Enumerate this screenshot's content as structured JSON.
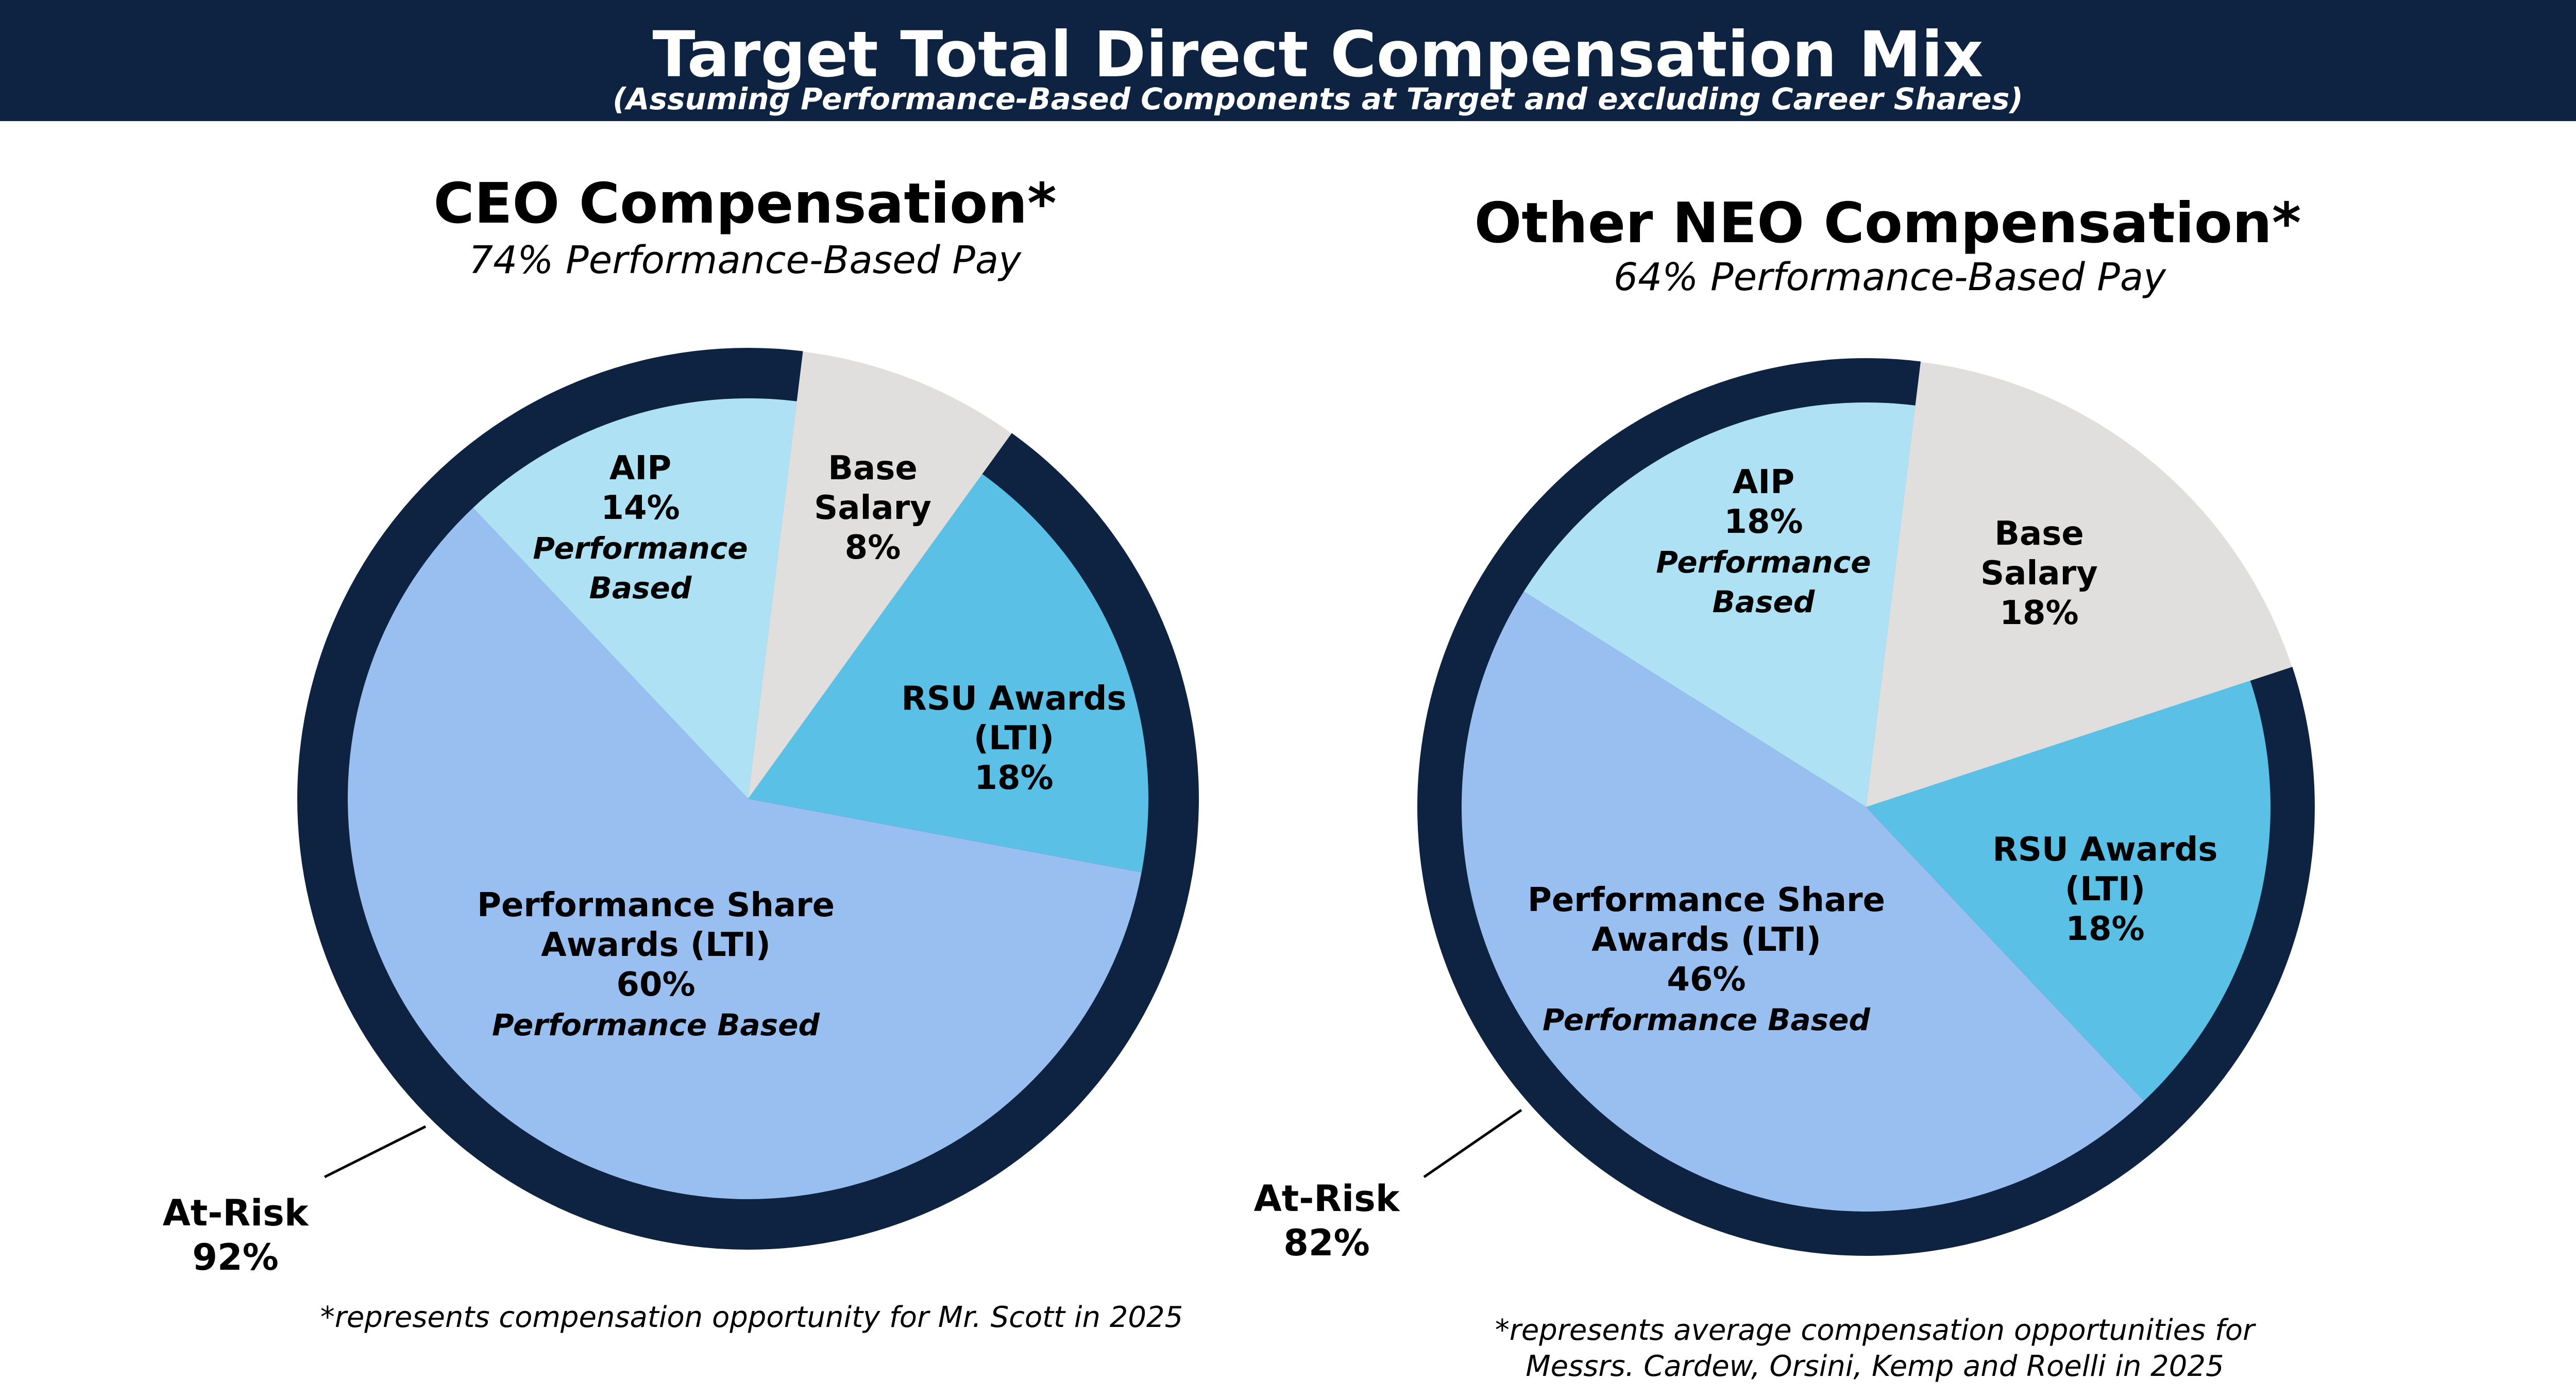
{
  "header": {
    "title": "Target Total Direct Compensation Mix",
    "subtitle": "(Assuming Performance-Based Components at Target and excluding Career Shares)"
  },
  "colors": {
    "navy": "#0e2341",
    "aip": "#aee1f4",
    "base_salary": "#e1dfdd",
    "rsu": "#5bc0e6",
    "psa": "#98bff0"
  },
  "chart_data": [
    {
      "type": "pie",
      "title": "CEO Compensation*",
      "subtitle": "74% Performance-Based Pay",
      "slices": [
        {
          "key": "base",
          "lines": [
            "Base",
            "Salary",
            "8%"
          ],
          "value": 8
        },
        {
          "key": "rsu",
          "lines": [
            "RSU Awards",
            "(LTI)",
            "18%"
          ],
          "value": 18
        },
        {
          "key": "psa",
          "lines": [
            "Performance Share",
            "Awards (LTI)",
            "60%",
            "Performance Based"
          ],
          "value": 60
        },
        {
          "key": "aip",
          "lines": [
            "AIP",
            "14%",
            "Performance",
            "Based"
          ],
          "value": 14
        }
      ],
      "ring": {
        "lines": [
          "At-Risk",
          "92%"
        ],
        "value": 92
      },
      "footnote": [
        "*represents compensation opportunity for Mr. Scott in 2025"
      ]
    },
    {
      "type": "pie",
      "title": "Other NEO Compensation*",
      "subtitle": "64% Performance-Based Pay",
      "slices": [
        {
          "key": "base",
          "lines": [
            "Base",
            "Salary",
            "18%"
          ],
          "value": 18
        },
        {
          "key": "rsu",
          "lines": [
            "RSU Awards",
            "(LTI)",
            "18%"
          ],
          "value": 18
        },
        {
          "key": "psa",
          "lines": [
            "Performance Share",
            "Awards (LTI)",
            "46%",
            "Performance Based"
          ],
          "value": 46
        },
        {
          "key": "aip",
          "lines": [
            "AIP",
            "18%",
            "Performance",
            "Based"
          ],
          "value": 18
        }
      ],
      "ring": {
        "lines": [
          "At-Risk",
          "82%"
        ],
        "value": 82
      },
      "footnote": [
        "*represents average compensation opportunities for",
        "Messrs. Cardew, Orsini, Kemp and Roelli in 2025"
      ]
    }
  ]
}
